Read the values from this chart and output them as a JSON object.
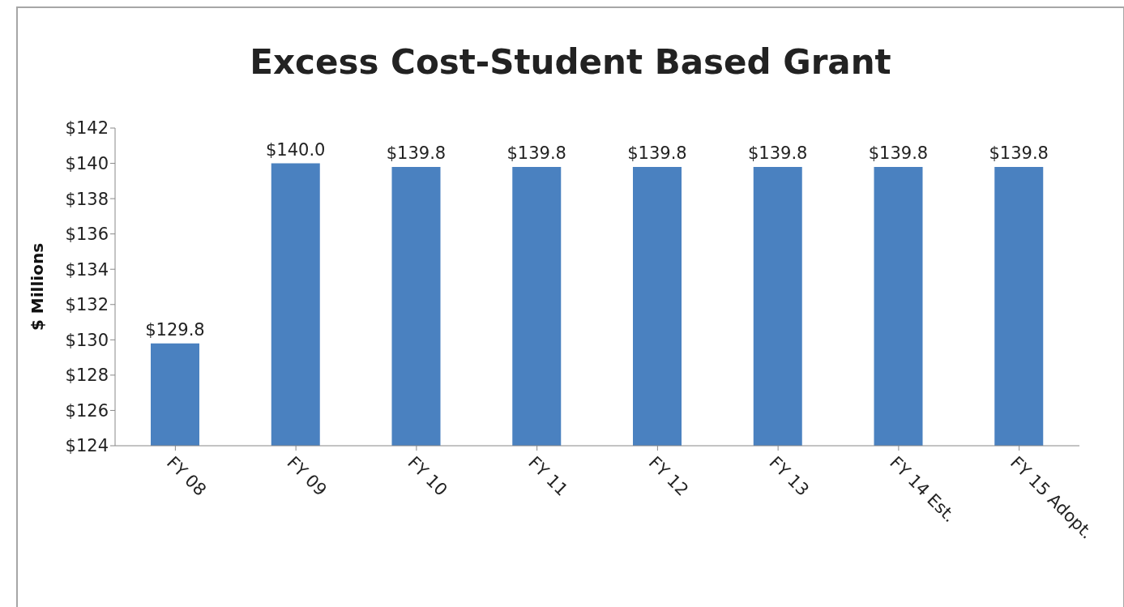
{
  "chart_data": {
    "type": "bar",
    "title": "Excess Cost-Student Based Grant",
    "ylabel": "$ Millions",
    "categories": [
      "FY 08",
      "FY 09",
      "FY 10",
      "FY 11",
      "FY 12",
      "FY 13",
      "FY 14 Est.",
      "FY 15 Adopt."
    ],
    "values": [
      129.8,
      140.0,
      139.8,
      139.8,
      139.8,
      139.8,
      139.8,
      139.8
    ],
    "value_labels": [
      "$129.8",
      "$140.0",
      "$139.8",
      "$139.8",
      "$139.8",
      "$139.8",
      "$139.8",
      "$139.8"
    ],
    "color": "#4a81c0",
    "ylim": [
      124,
      142
    ],
    "yticks": [
      {
        "value": 124,
        "label": "$124"
      },
      {
        "value": 126,
        "label": "$126"
      },
      {
        "value": 128,
        "label": "$128"
      },
      {
        "value": 130,
        "label": "$130"
      },
      {
        "value": 132,
        "label": "$132"
      },
      {
        "value": 134,
        "label": "$134"
      },
      {
        "value": 136,
        "label": "$136"
      },
      {
        "value": 138,
        "label": "$138"
      },
      {
        "value": 140,
        "label": "$140"
      },
      {
        "value": 142,
        "label": "$142"
      }
    ],
    "grid": false,
    "legend": false
  }
}
